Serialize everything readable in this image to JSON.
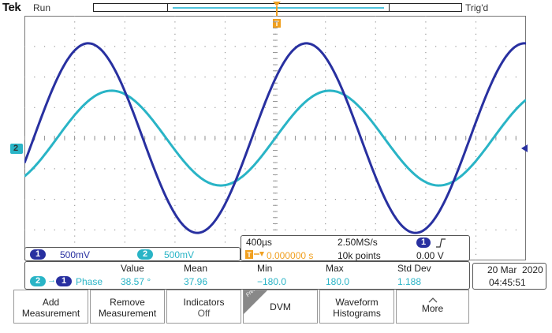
{
  "header": {
    "brand": "Tek",
    "acq_state": "Run",
    "trigger_state": "Trig'd",
    "trigger_marker": "T"
  },
  "colors": {
    "ch1": "#2830a0",
    "ch2": "#29b4c6",
    "trigger": "#f0a020",
    "grid": "#999999"
  },
  "waveforms": [
    {
      "channel": "1",
      "amplitude_div": 3.1,
      "period_div": 4.35,
      "phase_deg": 38.57
    },
    {
      "channel": "2",
      "amplitude_div": 1.55,
      "period_div": 4.35,
      "phase_deg": 0
    }
  ],
  "channels": {
    "ch1": {
      "badge": "1",
      "scale": "500mV"
    },
    "ch2": {
      "badge": "2",
      "scale": "500mV"
    },
    "ground_marker": "2"
  },
  "timebase": {
    "horizontal_scale": "400µs",
    "sample_rate": "2.50MS/s",
    "trigger_position": "0.000000 s",
    "record_length": "10k points",
    "trigger_source": "1",
    "trigger_level": "0.00 V"
  },
  "measurement": {
    "headers": [
      "Value",
      "Mean",
      "Min",
      "Max",
      "Std Dev"
    ],
    "source_a": "2",
    "source_b": "1",
    "label": "Phase",
    "values": [
      "38.57 °",
      "37.96",
      "−180.0",
      "180.0",
      "1.188"
    ]
  },
  "datetime": {
    "date": "20 Mar  2020",
    "time": "04:45:51"
  },
  "softkeys": [
    {
      "line1": "Add",
      "line2": "Measurement"
    },
    {
      "line1": "Remove",
      "line2": "Measurement"
    },
    {
      "line1": "Indicators",
      "line2": "Off"
    },
    {
      "line1": "DVM",
      "line2": "",
      "tag": "Free"
    },
    {
      "line1": "Waveform",
      "line2": "Histograms"
    },
    {
      "line1": "More",
      "line2": ""
    }
  ]
}
